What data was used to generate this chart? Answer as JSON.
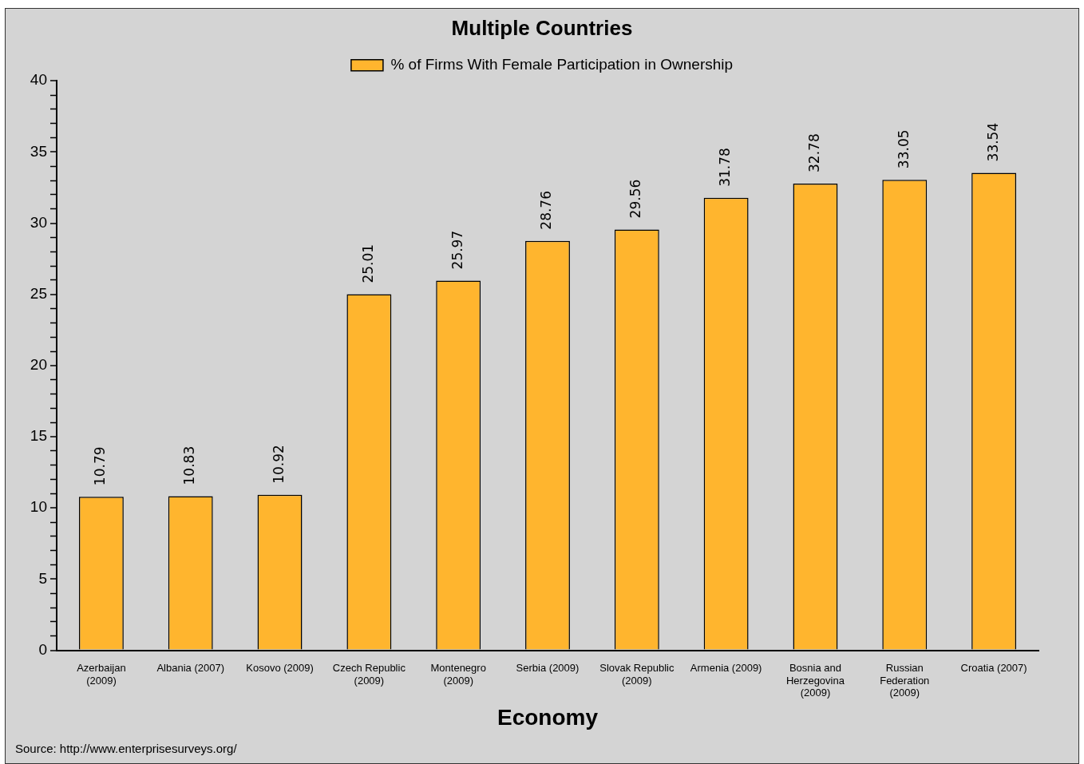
{
  "chart_data": {
    "type": "bar",
    "title": "Multiple Countries",
    "xlabel": "Economy",
    "categories": [
      "Azerbaijan (2009)",
      "Albania (2007)",
      "Kosovo (2009)",
      "Czech Republic (2009)",
      "Montenegro (2009)",
      "Serbia (2009)",
      "Slovak Republic (2009)",
      "Armenia (2009)",
      "Bosnia and Herzegovina (2009)",
      "Russian Federation (2009)",
      "Croatia (2007)"
    ],
    "series": [
      {
        "name": "% of Firms With Female Participation in Ownership",
        "color": "#ffb52e",
        "values": [
          10.79,
          10.83,
          10.92,
          25.01,
          25.97,
          28.76,
          29.56,
          31.78,
          32.78,
          33.05,
          33.54
        ]
      }
    ],
    "ylim": [
      0,
      40
    ],
    "yticks": [
      0,
      {
        "value": 1,
        "label": null
      },
      {
        "value": 2,
        "label": null
      },
      {
        "value": 3,
        "label": null
      },
      {
        "value": 4,
        "label": null
      },
      5,
      {
        "value": 6,
        "label": null
      },
      {
        "value": 7,
        "label": null
      },
      {
        "value": 8,
        "label": null
      },
      {
        "value": 9,
        "label": null
      },
      10,
      {
        "value": 11,
        "label": null
      },
      {
        "value": 12,
        "label": null
      },
      {
        "value": 13,
        "label": null
      },
      {
        "value": 14,
        "label": null
      },
      15,
      {
        "value": 16,
        "label": null
      },
      {
        "value": 17,
        "label": null
      },
      {
        "value": 18,
        "label": null
      },
      {
        "value": 19,
        "label": null
      },
      20,
      {
        "value": 21,
        "label": null
      },
      {
        "value": 22,
        "label": null
      },
      {
        "value": 23,
        "label": null
      },
      {
        "value": 24,
        "label": null
      },
      25,
      {
        "value": 26,
        "label": null
      },
      {
        "value": 27,
        "label": null
      },
      {
        "value": 28,
        "label": null
      },
      {
        "value": 29,
        "label": null
      },
      30,
      {
        "value": 31,
        "label": null
      },
      {
        "value": 32,
        "label": null
      },
      {
        "value": 33,
        "label": null
      },
      {
        "value": 34,
        "label": null
      },
      35,
      {
        "value": 36,
        "label": null
      },
      {
        "value": 37,
        "label": null
      },
      {
        "value": 38,
        "label": null
      },
      {
        "value": 39,
        "label": null
      },
      40
    ],
    "grid": false,
    "legend": "top",
    "data_labels": true,
    "annotations": [
      "Source: http://www.enterprisesurveys.org/"
    ]
  }
}
